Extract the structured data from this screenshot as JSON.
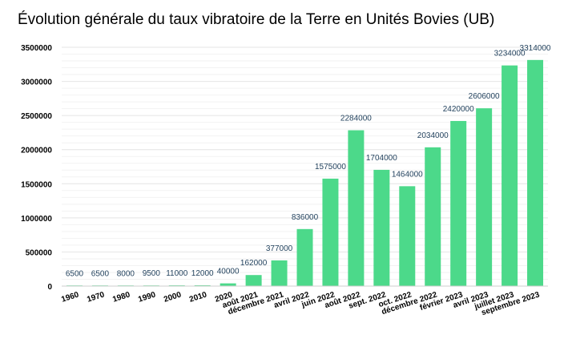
{
  "chart_data": {
    "type": "bar",
    "title": "Évolution générale du taux vibratoire de la Terre en Unités Bovies (UB)",
    "categories": [
      "1960",
      "1970",
      "1980",
      "1990",
      "2000",
      "2010",
      "2020",
      "août 2021",
      "décembre 2021",
      "avril 2022",
      "juin 2022",
      "août 2022",
      "sept. 2022",
      "oct. 2022",
      "décembre 2022",
      "février 2023",
      "avril 2023",
      "juillet 2023",
      "septembre 2023"
    ],
    "values": [
      6500,
      6500,
      8000,
      9500,
      11000,
      12000,
      40000,
      162000,
      377000,
      836000,
      1575000,
      2284000,
      1704000,
      1464000,
      2034000,
      2420000,
      2606000,
      3234000,
      3314000
    ],
    "data_labels": [
      "6500",
      "6500",
      "8000",
      "9500",
      "11000",
      "12000",
      "40000",
      "162000",
      "377000",
      "836000",
      "1575000",
      "2284000",
      "1704000",
      "1464000",
      "2034000",
      "2420000",
      "2606000",
      "3234000",
      "3314000"
    ],
    "yticks": [
      0,
      500000,
      1000000,
      1500000,
      2000000,
      2500000,
      3000000,
      3500000
    ],
    "ytick_labels": [
      "0",
      "500000",
      "1000000",
      "1500000",
      "2000000",
      "2500000",
      "3000000",
      "3500000"
    ],
    "ylim": [
      0,
      3500000
    ],
    "xlabel": "",
    "ylabel": "",
    "grid": true,
    "bar_color": "#4cd98a"
  }
}
